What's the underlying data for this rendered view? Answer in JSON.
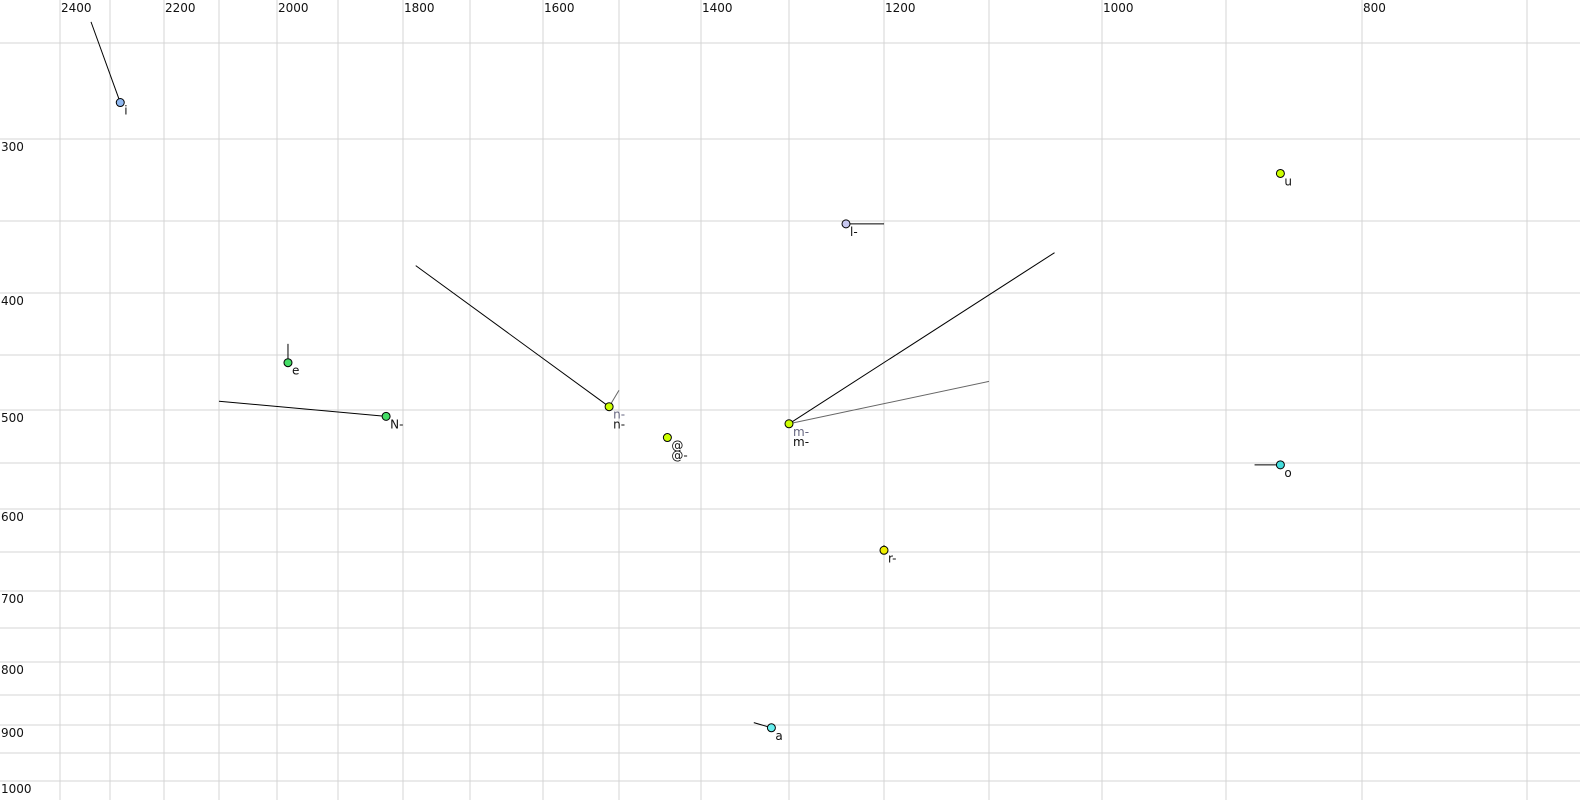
{
  "chart_data": {
    "type": "scatter",
    "title": "",
    "xlabel": "",
    "ylabel": "",
    "x_reversed": true,
    "y_reversed": true,
    "grid": true,
    "xlim": [
      2420,
      680
    ],
    "ylim": [
      230,
      1010
    ],
    "x_ticks": [
      {
        "value": 2400,
        "label": "2400"
      },
      {
        "value": 2200,
        "label": "2200"
      },
      {
        "value": 2000,
        "label": "2000"
      },
      {
        "value": 1800,
        "label": "1800"
      },
      {
        "value": 1600,
        "label": "1600"
      },
      {
        "value": 1400,
        "label": "1400"
      },
      {
        "value": 1200,
        "label": "1200"
      },
      {
        "value": 1000,
        "label": "1000"
      },
      {
        "value": 800,
        "label": "800"
      }
    ],
    "y_ticks": [
      {
        "value": 300,
        "label": "300"
      },
      {
        "value": 400,
        "label": "400"
      },
      {
        "value": 500,
        "label": "500"
      },
      {
        "value": 600,
        "label": "600"
      },
      {
        "value": 700,
        "label": "700"
      },
      {
        "value": 800,
        "label": "800"
      },
      {
        "value": 900,
        "label": "900"
      },
      {
        "value": 1000,
        "label": "1000"
      }
    ],
    "x_gridlines": [
      2400,
      2300,
      2200,
      2100,
      2000,
      1900,
      1800,
      1700,
      1600,
      1500,
      1400,
      1300,
      1200,
      1100,
      1000,
      900,
      800,
      700
    ],
    "y_gridlines": [
      250,
      300,
      350,
      400,
      450,
      500,
      550,
      600,
      650,
      700,
      750,
      800,
      850,
      900,
      950,
      1000
    ],
    "points": [
      {
        "label": "i",
        "x": 2281,
        "y": 281,
        "color": "#8fb8f0",
        "trajectory": [
          [
            2338,
            239
          ]
        ]
      },
      {
        "label": "u",
        "x": 860,
        "y": 321,
        "color": "#ccff00",
        "trajectory": []
      },
      {
        "label": "l-",
        "x": 1240,
        "y": 352,
        "color": "#c8c8f0",
        "trajectory": [
          [
            1200,
            352
          ]
        ]
      },
      {
        "label": "e",
        "x": 1982,
        "y": 457,
        "color": "#44dd66",
        "trajectory": [
          [
            1982,
            441
          ]
        ]
      },
      {
        "label": "N-",
        "x": 1826,
        "y": 506,
        "color": "#44dd66",
        "trajectory": [
          [
            2100,
            492
          ]
        ]
      },
      {
        "label": "n-",
        "x": 1513,
        "y": 497,
        "color": "#ccff00",
        "trajectory": [
          [
            1781,
            381
          ]
        ],
        "secondary_label": "n-",
        "secondary_trajectory": [
          [
            1500,
            482
          ]
        ]
      },
      {
        "label": "@-",
        "x": 1441,
        "y": 526,
        "color": "#ccff00",
        "trajectory": [],
        "secondary_label": "@"
      },
      {
        "label": "m-",
        "x": 1300,
        "y": 513,
        "color": "#ccff00",
        "trajectory": [
          [
            1042,
            372
          ]
        ],
        "secondary_label": "m-",
        "secondary_trajectory": [
          [
            1100,
            474
          ]
        ]
      },
      {
        "label": "o",
        "x": 860,
        "y": 552,
        "color": "#44dddd",
        "trajectory": [
          [
            879,
            552
          ]
        ]
      },
      {
        "label": "r-",
        "x": 1200,
        "y": 648,
        "color": "#eeee00",
        "trajectory": [
          [
            1200,
            642
          ]
        ]
      },
      {
        "label": "a",
        "x": 1320,
        "y": 905,
        "color": "#66eeee",
        "trajectory": [
          [
            1340,
            896
          ]
        ]
      }
    ]
  }
}
